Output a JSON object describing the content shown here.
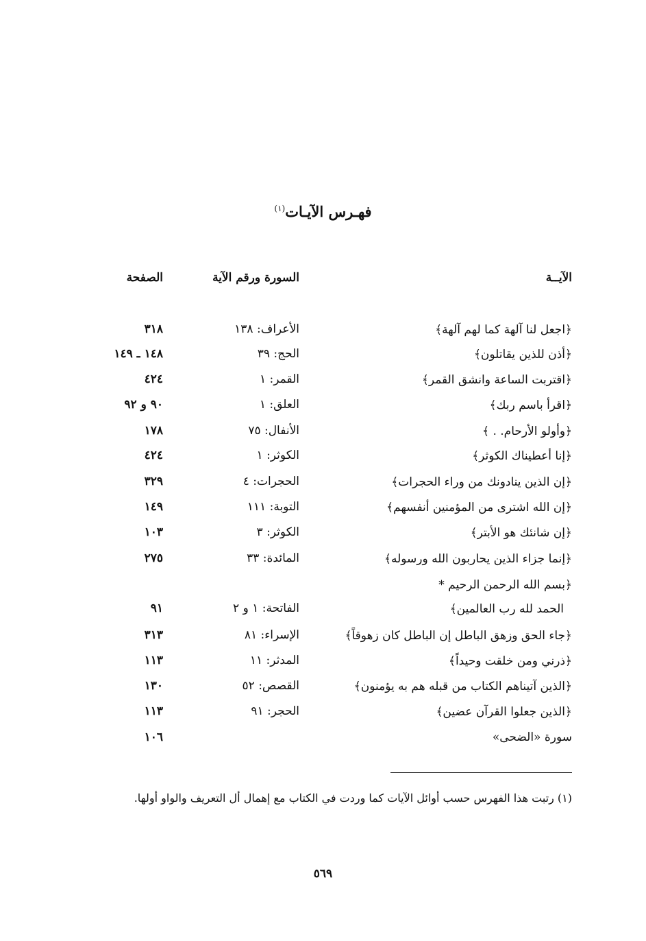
{
  "title": "فهـرس الآيـات",
  "title_note": "(١)",
  "headers": {
    "ayah": "الآيــة",
    "surah": "السورة ورقم الآية",
    "page": "الصفحة"
  },
  "rows": [
    {
      "ayah": "﴿اجعل لنا آلهة كما لهم آلهة﴾",
      "surah": "الأعراف: ١٣٨",
      "page": "٣١٨"
    },
    {
      "ayah": "﴿أذن للذين يقاتلون﴾",
      "surah": "الحج: ٣٩",
      "page": "١٤٨ ـ ١٤٩"
    },
    {
      "ayah": "﴿اقتربت الساعة وانشق القمر﴾",
      "surah": "القمر: ١",
      "page": "٤٢٤"
    },
    {
      "ayah": "﴿اقرأ باسم ربك﴾",
      "surah": "العلق: ١",
      "page": "٩٠ و ٩٢"
    },
    {
      "ayah": "﴿وأولو الأرحام. . ﴾",
      "surah": "الأنفال: ٧٥",
      "page": "١٧٨"
    },
    {
      "ayah": "﴿إنا أعطيناك الكوثر﴾",
      "surah": "الكوثر: ١",
      "page": "٤٢٤"
    },
    {
      "ayah": "﴿إن الذين ينادونك من وراء الحجرات﴾",
      "surah": "الحجرات: ٤",
      "page": "٣٢٩"
    },
    {
      "ayah": "﴿إن الله اشترى من المؤمنين أنفسهم﴾",
      "surah": "التوبة: ١١١",
      "page": "١٤٩"
    },
    {
      "ayah": "﴿إن شانئك هو الأبتر﴾",
      "surah": "الكوثر: ٣",
      "page": "١٠٣"
    },
    {
      "ayah": "﴿إنما جزاء الذين يحاربون الله ورسوله﴾",
      "surah": "المائدة: ٣٣",
      "page": "٢٧٥"
    },
    {
      "ayah": "﴿بسم الله الرحمن الرحيم *",
      "surah": "",
      "page": ""
    },
    {
      "ayah": "الحمد لله رب العالمين﴾",
      "surah": "الفاتحة: ١ و ٢",
      "page": "٩١"
    },
    {
      "ayah": "﴿جاء الحق وزهق الباطل إن الباطل كان زهوقاً﴾",
      "surah": "الإسراء: ٨١",
      "page": "٣١٣"
    },
    {
      "ayah": "﴿ذرني ومن خلقت وحيداً﴾",
      "surah": "المدثر: ١١",
      "page": "١١٣"
    },
    {
      "ayah": "﴿الذين آتيناهم الكتاب من قبله هم به يؤمنون﴾",
      "surah": "القصص: ٥٢",
      "page": "١٣٠"
    },
    {
      "ayah": "﴿الذين جعلوا القرآن عضين﴾",
      "surah": "الحجر: ٩١",
      "page": "١١٣"
    },
    {
      "ayah": "سورة «الضحى»",
      "surah": "",
      "page": "١٠٦"
    }
  ],
  "footnote": "(١) رتبت هذا الفهرس حسب أوائل الآيات كما وردت في الكتاب مع إهمال أل التعريف والواو أولها.",
  "page_number": "٥٦٩"
}
